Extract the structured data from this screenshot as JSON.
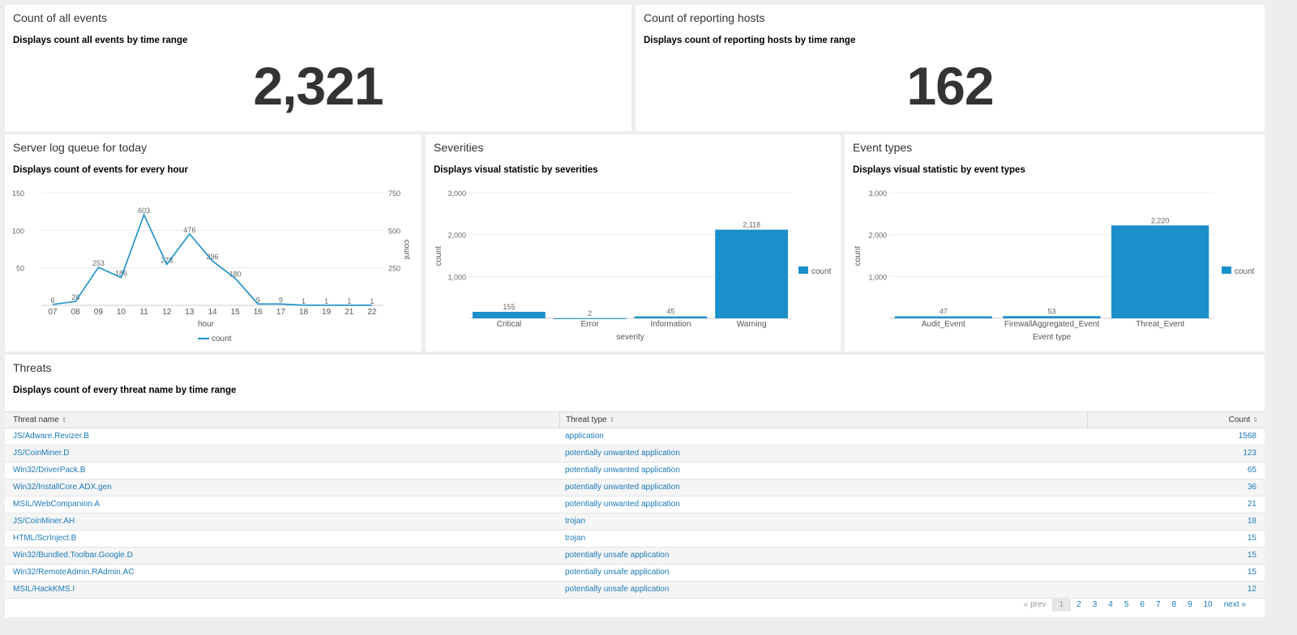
{
  "panels": {
    "events": {
      "title": "Count of all events",
      "desc": "Displays count all events by time range",
      "value": "2,321"
    },
    "hosts": {
      "title": "Count of reporting hosts",
      "desc": "Displays count of reporting hosts by time range",
      "value": "162"
    },
    "queue": {
      "title": "Server log queue for today",
      "desc": "Displays count of events for every hour"
    },
    "severities": {
      "title": "Severities",
      "desc": "Displays visual statistic by severities"
    },
    "eventtypes": {
      "title": "Event types",
      "desc": "Displays visual statistic by event types"
    },
    "threats": {
      "title": "Threats",
      "desc": "Displays count of every threat name by time range"
    }
  },
  "chart_data": [
    {
      "type": "line",
      "xlabel": "hour",
      "ylabel": "count",
      "categories": [
        "07",
        "08",
        "09",
        "10",
        "11",
        "12",
        "13",
        "14",
        "15",
        "16",
        "17",
        "18",
        "19",
        "21",
        "22"
      ],
      "series": [
        {
          "name": "count",
          "values": [
            6,
            26,
            253,
            186,
            603,
            273,
            476,
            296,
            180,
            9,
            9,
            1,
            1,
            1,
            1
          ]
        }
      ],
      "left_ticks": [
        "150",
        "100",
        "50"
      ],
      "right_ticks": [
        "750",
        "500",
        "250"
      ],
      "ylim": [
        0,
        750
      ],
      "legend": "bottom",
      "color": "#1a8fc9"
    },
    {
      "type": "bar",
      "xlabel": "severity",
      "ylabel": "count",
      "categories": [
        "Critical",
        "Error",
        "Information",
        "Warning"
      ],
      "series": [
        {
          "name": "count",
          "values": [
            155,
            2,
            45,
            2118
          ]
        }
      ],
      "labels": [
        "155",
        "2",
        "45",
        "2,118"
      ],
      "ticks": [
        "3,000",
        "2,000",
        "1,000"
      ],
      "ylim": [
        0,
        3000
      ],
      "legend": "right",
      "color": "#1a8fc9"
    },
    {
      "type": "bar",
      "xlabel": "Event type",
      "ylabel": "count",
      "categories": [
        "Audit_Event",
        "FirewallAggregated_Event",
        "Threat_Event"
      ],
      "series": [
        {
          "name": "count",
          "values": [
            47,
            53,
            2220
          ]
        }
      ],
      "labels": [
        "47",
        "53",
        "2,220"
      ],
      "ticks": [
        "3,000",
        "2,000",
        "1,000"
      ],
      "ylim": [
        0,
        3000
      ],
      "legend": "right",
      "color": "#1a8fc9"
    }
  ],
  "table": {
    "columns": [
      "Threat name",
      "Threat type",
      "Count"
    ],
    "rows": [
      [
        "JS/Adware.Revizer.B",
        "application",
        "1568"
      ],
      [
        "JS/CoinMiner.D",
        "potentially unwanted application",
        "123"
      ],
      [
        "Win32/DriverPack.B",
        "potentially unwanted application",
        "65"
      ],
      [
        "Win32/InstallCore.ADX.gen",
        "potentially unwanted application",
        "36"
      ],
      [
        "MSIL/WebCompanion.A",
        "potentially unwanted application",
        "21"
      ],
      [
        "JS/CoinMiner.AH",
        "trojan",
        "18"
      ],
      [
        "HTML/ScrInject.B",
        "trojan",
        "15"
      ],
      [
        "Win32/Bundled.Toolbar.Google.D",
        "potentially unsafe application",
        "15"
      ],
      [
        "Win32/RemoteAdmin.RAdmin.AC",
        "potentially unsafe application",
        "15"
      ],
      [
        "MSIL/HackKMS.I",
        "potentially unsafe application",
        "12"
      ]
    ]
  },
  "pager": {
    "prev": "« prev",
    "pages": [
      "1",
      "2",
      "3",
      "4",
      "5",
      "6",
      "7",
      "8",
      "9",
      "10"
    ],
    "next": "next »"
  }
}
